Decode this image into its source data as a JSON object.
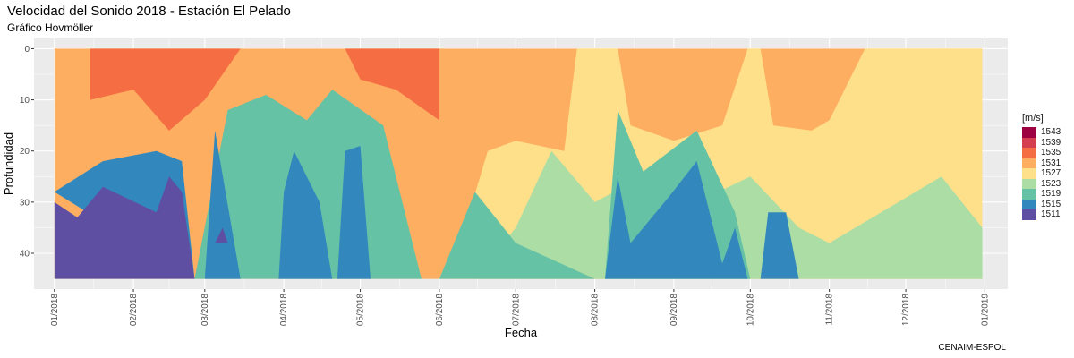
{
  "title": "Velocidad del Sonido 2018 - Estación El Pelado",
  "subtitle": "Gráfico Hovmöller",
  "caption": "CENAIM-ESPOL",
  "legend": {
    "title": "[m/s]",
    "entries": [
      {
        "label": "1543",
        "color": "#9e0142"
      },
      {
        "label": "1539",
        "color": "#d53e4f"
      },
      {
        "label": "1535",
        "color": "#f46d43"
      },
      {
        "label": "1531",
        "color": "#fdae61"
      },
      {
        "label": "1527",
        "color": "#fee08b"
      },
      {
        "label": "1523",
        "color": "#abdda4"
      },
      {
        "label": "1519",
        "color": "#66c2a5"
      },
      {
        "label": "1515",
        "color": "#3288bd"
      },
      {
        "label": "1511",
        "color": "#5e4fa2"
      }
    ]
  },
  "chart_data": {
    "type": "heatmap",
    "title": "Velocidad del Sonido 2018 - Estación El Pelado",
    "subtitle": "Gráfico Hovmöller",
    "xlabel": "Fecha",
    "ylabel": "Profundidad",
    "xlim": [
      "2017-12-24",
      "2019-01-10"
    ],
    "ylim": [
      -2,
      47
    ],
    "y_reversed": true,
    "grid": true,
    "legend_position": "right",
    "x_ticks": [
      "01/2018",
      "02/2018",
      "03/2018",
      "04/2018",
      "05/2018",
      "06/2018",
      "07/2018",
      "08/2018",
      "09/2018",
      "10/2018",
      "11/2018",
      "12/2018",
      "01/2019"
    ],
    "x_tick_dates": [
      "2018-01-01",
      "2018-02-01",
      "2018-03-01",
      "2018-04-01",
      "2018-05-01",
      "2018-06-01",
      "2018-07-01",
      "2018-08-01",
      "2018-09-01",
      "2018-10-01",
      "2018-11-01",
      "2018-12-01",
      "2019-01-01"
    ],
    "y_ticks": [
      0,
      10,
      20,
      30,
      40
    ],
    "depth_range": [
      0,
      45
    ],
    "legend_levels": [
      1543,
      1539,
      1535,
      1531,
      1527,
      1523,
      1519,
      1515,
      1511
    ],
    "color_scale": [
      "#9e0142",
      "#d53e4f",
      "#f46d43",
      "#fdae61",
      "#fee08b",
      "#abdda4",
      "#66c2a5",
      "#3288bd",
      "#5e4fa2"
    ],
    "level_bands": [
      {
        "level": 1535,
        "color": "#f46d43",
        "points": [
          [
            "2018-01-15",
            0
          ],
          [
            "2018-01-15",
            10
          ],
          [
            "2018-02-01",
            8
          ],
          [
            "2018-02-15",
            16
          ],
          [
            "2018-03-01",
            10
          ],
          [
            "2018-03-15",
            0
          ]
        ]
      },
      {
        "level": 1535,
        "color": "#f46d43",
        "points": [
          [
            "2018-04-25",
            0
          ],
          [
            "2018-05-01",
            6
          ],
          [
            "2018-05-15",
            8
          ],
          [
            "2018-06-01",
            14
          ],
          [
            "2018-06-01",
            0
          ]
        ]
      },
      {
        "level": 1527,
        "color": "#fee08b",
        "points": [
          [
            "2018-06-05",
            45
          ],
          [
            "2018-06-20",
            20
          ],
          [
            "2018-07-01",
            18
          ],
          [
            "2018-07-20",
            20
          ],
          [
            "2018-07-25",
            0
          ],
          [
            "2018-08-10",
            0
          ],
          [
            "2018-08-15",
            15
          ],
          [
            "2018-09-01",
            18
          ],
          [
            "2018-09-20",
            15
          ],
          [
            "2018-09-30",
            0
          ],
          [
            "2018-10-05",
            0
          ],
          [
            "2018-10-10",
            15
          ],
          [
            "2018-10-25",
            16
          ],
          [
            "2018-11-01",
            14
          ],
          [
            "2018-11-15",
            0
          ],
          [
            "2018-12-31",
            0
          ],
          [
            "2018-12-31",
            45
          ]
        ]
      },
      {
        "level": 1523,
        "color": "#abdda4",
        "points": [
          [
            "2018-06-15",
            45
          ],
          [
            "2018-07-01",
            35
          ],
          [
            "2018-07-15",
            20
          ],
          [
            "2018-08-01",
            30
          ],
          [
            "2018-08-20",
            25
          ],
          [
            "2018-09-10",
            30
          ],
          [
            "2018-10-01",
            25
          ],
          [
            "2018-10-20",
            35
          ],
          [
            "2018-11-01",
            38
          ],
          [
            "2018-12-15",
            25
          ],
          [
            "2018-12-31",
            35
          ],
          [
            "2018-12-31",
            45
          ]
        ]
      },
      {
        "level": 1519,
        "color": "#66c2a5",
        "points": [
          [
            "2018-02-25",
            45
          ],
          [
            "2018-03-10",
            12
          ],
          [
            "2018-03-25",
            9
          ],
          [
            "2018-04-10",
            14
          ],
          [
            "2018-04-20",
            8
          ],
          [
            "2018-05-10",
            15
          ],
          [
            "2018-05-25",
            45
          ]
        ]
      },
      {
        "level": 1519,
        "color": "#66c2a5",
        "points": [
          [
            "2018-06-01",
            45
          ],
          [
            "2018-06-15",
            28
          ],
          [
            "2018-07-01",
            38
          ],
          [
            "2018-08-01",
            45
          ]
        ]
      },
      {
        "level": 1519,
        "color": "#66c2a5",
        "points": [
          [
            "2018-08-05",
            45
          ],
          [
            "2018-08-10",
            12
          ],
          [
            "2018-08-20",
            24
          ],
          [
            "2018-09-10",
            16
          ],
          [
            "2018-09-25",
            32
          ],
          [
            "2018-10-01",
            45
          ]
        ]
      },
      {
        "level": 1515,
        "color": "#3288bd",
        "points": [
          [
            "2018-01-01",
            28
          ],
          [
            "2018-01-20",
            22
          ],
          [
            "2018-02-10",
            20
          ],
          [
            "2018-02-20",
            22
          ],
          [
            "2018-02-25",
            45
          ]
        ]
      },
      {
        "level": 1515,
        "color": "#3288bd",
        "points": [
          [
            "2018-03-01",
            45
          ],
          [
            "2018-03-05",
            16
          ],
          [
            "2018-03-15",
            45
          ]
        ]
      },
      {
        "level": 1515,
        "color": "#3288bd",
        "points": [
          [
            "2018-03-30",
            45
          ],
          [
            "2018-04-01",
            28
          ],
          [
            "2018-04-05",
            20
          ],
          [
            "2018-04-15",
            30
          ],
          [
            "2018-04-20",
            45
          ]
        ]
      },
      {
        "level": 1515,
        "color": "#3288bd",
        "points": [
          [
            "2018-04-22",
            45
          ],
          [
            "2018-04-25",
            20
          ],
          [
            "2018-05-01",
            19
          ],
          [
            "2018-05-05",
            45
          ]
        ]
      },
      {
        "level": 1515,
        "color": "#3288bd",
        "points": [
          [
            "2018-08-05",
            45
          ],
          [
            "2018-08-10",
            25
          ],
          [
            "2018-08-15",
            38
          ],
          [
            "2018-08-30",
            29
          ],
          [
            "2018-09-10",
            22
          ],
          [
            "2018-09-20",
            42
          ],
          [
            "2018-09-25",
            35
          ],
          [
            "2018-09-30",
            45
          ]
        ]
      },
      {
        "level": 1515,
        "color": "#3288bd",
        "points": [
          [
            "2018-10-05",
            45
          ],
          [
            "2018-10-08",
            32
          ],
          [
            "2018-10-15",
            32
          ],
          [
            "2018-10-20",
            45
          ]
        ]
      },
      {
        "level": 1511,
        "color": "#5e4fa2",
        "points": [
          [
            "2018-01-01",
            30
          ],
          [
            "2018-01-10",
            33
          ],
          [
            "2018-01-20",
            27
          ],
          [
            "2018-02-10",
            32
          ],
          [
            "2018-02-15",
            25
          ],
          [
            "2018-02-20",
            28
          ],
          [
            "2018-02-25",
            45
          ],
          [
            "2018-01-01",
            45
          ]
        ]
      },
      {
        "level": 1511,
        "color": "#5e4fa2",
        "points": [
          [
            "2018-03-05",
            38
          ],
          [
            "2018-03-08",
            35
          ],
          [
            "2018-03-10",
            38
          ]
        ]
      }
    ]
  }
}
